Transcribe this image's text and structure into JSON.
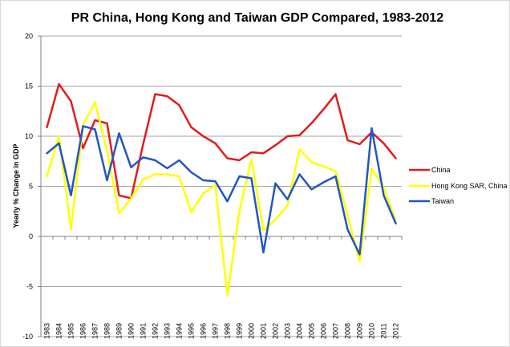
{
  "chart_data": {
    "type": "line",
    "title": "PR China, Hong Kong and Taiwan GDP Compared, 1983-2012",
    "xlabel": "",
    "ylabel": "Yearly % Change in GDP",
    "ylim": [
      -10,
      20
    ],
    "yticks": [
      -10,
      -5,
      0,
      5,
      10,
      15,
      20
    ],
    "grid": "horizontal",
    "legend_position": "right",
    "categories": [
      "1983",
      "1984",
      "1985",
      "1986",
      "1987",
      "1988",
      "1989",
      "1990",
      "1991",
      "1992",
      "1993",
      "1994",
      "1995",
      "1996",
      "1997",
      "1998",
      "1999",
      "2000",
      "2001",
      "2002",
      "2003",
      "2004",
      "2005",
      "2006",
      "2007",
      "2008",
      "2009",
      "2010",
      "2011",
      "2012"
    ],
    "series": [
      {
        "name": "China",
        "color": "#e31a1c",
        "values": [
          10.9,
          15.2,
          13.5,
          8.8,
          11.6,
          11.3,
          4.1,
          3.8,
          9.2,
          14.2,
          14.0,
          13.1,
          10.9,
          10.0,
          9.3,
          7.8,
          7.6,
          8.4,
          8.3,
          9.1,
          10.0,
          10.1,
          11.3,
          12.7,
          14.2,
          9.6,
          9.2,
          10.4,
          9.3,
          7.8
        ]
      },
      {
        "name": "Hong Kong SAR, China",
        "color": "#ffff00",
        "values": [
          6.0,
          10.0,
          0.7,
          11.1,
          13.4,
          8.5,
          2.3,
          3.8,
          5.7,
          6.2,
          6.2,
          6.0,
          2.4,
          4.3,
          5.1,
          -5.9,
          2.5,
          7.7,
          0.6,
          1.7,
          3.1,
          8.7,
          7.4,
          7.0,
          6.5,
          2.1,
          -2.5,
          6.8,
          4.9,
          1.5
        ]
      },
      {
        "name": "Taiwan",
        "color": "#2255c4",
        "values": [
          8.3,
          9.3,
          4.1,
          11.0,
          10.7,
          5.6,
          10.3,
          6.9,
          7.9,
          7.6,
          6.8,
          7.6,
          6.4,
          5.6,
          5.5,
          3.5,
          6.0,
          5.8,
          -1.6,
          5.3,
          3.7,
          6.2,
          4.7,
          5.4,
          6.0,
          0.7,
          -1.8,
          10.8,
          4.1,
          1.3
        ]
      }
    ]
  }
}
